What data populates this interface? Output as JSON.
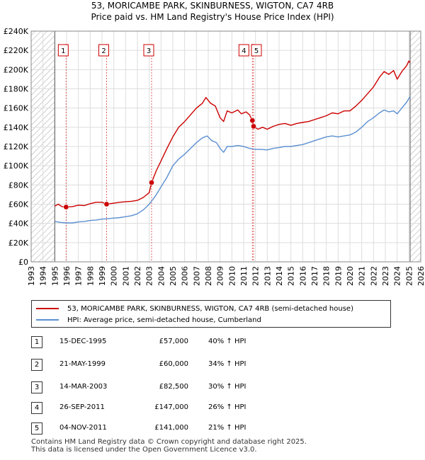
{
  "title_line1": "53, MORICAMBE PARK, SKINBURNESS, WIGTON, CA7 4RB",
  "title_line2": "Price paid vs. HM Land Registry's House Price Index (HPI)",
  "legend": {
    "property_label": "53, MORICAMBE PARK, SKINBURNESS, WIGTON, CA7 4RB (semi-detached house)",
    "hpi_label": "HPI: Average price, semi-detached house, Cumberland"
  },
  "colors": {
    "property": "#cc0000",
    "hpi": "#5b8fd0",
    "hatch": "#b0b0b0",
    "grid": "#dddddd"
  },
  "transactions": [
    {
      "num": "1",
      "date": "15-DEC-1995",
      "price": "£57,000",
      "hpi": "40% ↑ HPI",
      "year": 1995.96,
      "value": 57000
    },
    {
      "num": "2",
      "date": "21-MAY-1999",
      "price": "£60,000",
      "hpi": "34% ↑ HPI",
      "year": 1999.39,
      "value": 60000
    },
    {
      "num": "3",
      "date": "14-MAR-2003",
      "price": "£82,500",
      "hpi": "30% ↑ HPI",
      "year": 2003.2,
      "value": 82500
    },
    {
      "num": "4",
      "date": "26-SEP-2011",
      "price": "£147,000",
      "hpi": "26% ↑ HPI",
      "year": 2011.74,
      "value": 147000
    },
    {
      "num": "5",
      "date": "04-NOV-2011",
      "price": "£141,000",
      "hpi": "21% ↑ HPI",
      "year": 2011.84,
      "value": 141000
    }
  ],
  "footer_line1": "Contains HM Land Registry data © Crown copyright and database right 2025.",
  "footer_line2": "This data is licensed under the Open Government Licence v3.0.",
  "chart_data": {
    "type": "line",
    "xlim": [
      1993,
      2026
    ],
    "ylim": [
      0,
      240000
    ],
    "x_ticks": [
      "1993",
      "1994",
      "1995",
      "1996",
      "1997",
      "1998",
      "1999",
      "2000",
      "2001",
      "2002",
      "2003",
      "2004",
      "2005",
      "2006",
      "2007",
      "2008",
      "2009",
      "2010",
      "2011",
      "2012",
      "2013",
      "2014",
      "2015",
      "2016",
      "2017",
      "2018",
      "2019",
      "2020",
      "2021",
      "2022",
      "2023",
      "2024",
      "2025",
      "2026"
    ],
    "y_ticks": [
      {
        "value": 0,
        "label": "£0"
      },
      {
        "value": 20000,
        "label": "£20K"
      },
      {
        "value": 40000,
        "label": "£40K"
      },
      {
        "value": 60000,
        "label": "£60K"
      },
      {
        "value": 80000,
        "label": "£80K"
      },
      {
        "value": 100000,
        "label": "£100K"
      },
      {
        "value": 120000,
        "label": "£120K"
      },
      {
        "value": 140000,
        "label": "£140K"
      },
      {
        "value": 160000,
        "label": "£160K"
      },
      {
        "value": 180000,
        "label": "£180K"
      },
      {
        "value": 200000,
        "label": "£200K"
      },
      {
        "value": 220000,
        "label": "£220K"
      },
      {
        "value": 240000,
        "label": "£240K"
      }
    ],
    "grid": true,
    "hatched_before": 1995.0,
    "hatched_after": 2025.1,
    "series": [
      {
        "name": "53, MORICAMBE PARK, SKINBURNESS, WIGTON, CA7 4RB (semi-detached house)",
        "points": [
          [
            1995.0,
            58000
          ],
          [
            1995.3,
            60000
          ],
          [
            1995.6,
            57500
          ],
          [
            1995.96,
            57000
          ],
          [
            1996.5,
            57500
          ],
          [
            1997.0,
            59000
          ],
          [
            1997.5,
            58500
          ],
          [
            1998.0,
            60500
          ],
          [
            1998.5,
            62000
          ],
          [
            1999.0,
            62000
          ],
          [
            1999.39,
            60000
          ],
          [
            2000.0,
            61000
          ],
          [
            2000.5,
            62000
          ],
          [
            2001.0,
            62500
          ],
          [
            2001.5,
            63000
          ],
          [
            2002.0,
            64000
          ],
          [
            2002.5,
            67000
          ],
          [
            2003.0,
            72000
          ],
          [
            2003.2,
            82500
          ],
          [
            2003.6,
            95000
          ],
          [
            2004.0,
            105000
          ],
          [
            2004.5,
            118000
          ],
          [
            2005.0,
            130000
          ],
          [
            2005.5,
            140000
          ],
          [
            2006.0,
            146000
          ],
          [
            2006.5,
            153000
          ],
          [
            2007.0,
            160000
          ],
          [
            2007.5,
            165000
          ],
          [
            2007.8,
            171000
          ],
          [
            2008.2,
            165000
          ],
          [
            2008.6,
            162000
          ],
          [
            2009.0,
            150000
          ],
          [
            2009.3,
            146000
          ],
          [
            2009.6,
            157000
          ],
          [
            2010.0,
            155000
          ],
          [
            2010.5,
            158000
          ],
          [
            2010.8,
            154000
          ],
          [
            2011.2,
            156000
          ],
          [
            2011.5,
            153000
          ],
          [
            2011.74,
            147000
          ],
          [
            2011.84,
            141000
          ],
          [
            2012.2,
            138000
          ],
          [
            2012.6,
            140000
          ],
          [
            2013.0,
            138000
          ],
          [
            2013.5,
            141000
          ],
          [
            2014.0,
            143000
          ],
          [
            2014.5,
            144000
          ],
          [
            2015.0,
            142000
          ],
          [
            2015.5,
            144000
          ],
          [
            2016.0,
            145000
          ],
          [
            2016.5,
            146000
          ],
          [
            2017.0,
            148000
          ],
          [
            2017.5,
            150000
          ],
          [
            2018.0,
            152000
          ],
          [
            2018.5,
            155000
          ],
          [
            2019.0,
            154000
          ],
          [
            2019.5,
            157000
          ],
          [
            2020.0,
            157000
          ],
          [
            2020.5,
            162000
          ],
          [
            2021.0,
            168000
          ],
          [
            2021.5,
            175000
          ],
          [
            2022.0,
            182000
          ],
          [
            2022.5,
            192000
          ],
          [
            2022.9,
            198000
          ],
          [
            2023.3,
            195000
          ],
          [
            2023.7,
            199000
          ],
          [
            2024.0,
            190000
          ],
          [
            2024.4,
            198000
          ],
          [
            2024.8,
            204000
          ],
          [
            2025.0,
            209000
          ],
          [
            2025.1,
            207000
          ]
        ]
      },
      {
        "name": "HPI: Average price, semi-detached house, Cumberland",
        "points": [
          [
            1995.0,
            42000
          ],
          [
            1995.5,
            41000
          ],
          [
            1996.0,
            40500
          ],
          [
            1996.5,
            40500
          ],
          [
            1997.0,
            41500
          ],
          [
            1997.5,
            42000
          ],
          [
            1998.0,
            43000
          ],
          [
            1998.5,
            43500
          ],
          [
            1999.0,
            44500
          ],
          [
            1999.5,
            45000
          ],
          [
            2000.0,
            45500
          ],
          [
            2000.5,
            46000
          ],
          [
            2001.0,
            47000
          ],
          [
            2001.5,
            48000
          ],
          [
            2002.0,
            50000
          ],
          [
            2002.5,
            54000
          ],
          [
            2003.0,
            60000
          ],
          [
            2003.5,
            68000
          ],
          [
            2004.0,
            78000
          ],
          [
            2004.5,
            88000
          ],
          [
            2005.0,
            100000
          ],
          [
            2005.5,
            107000
          ],
          [
            2006.0,
            112000
          ],
          [
            2006.5,
            118000
          ],
          [
            2007.0,
            124000
          ],
          [
            2007.5,
            129000
          ],
          [
            2007.9,
            131000
          ],
          [
            2008.3,
            126000
          ],
          [
            2008.7,
            124000
          ],
          [
            2009.0,
            118000
          ],
          [
            2009.3,
            114000
          ],
          [
            2009.6,
            120000
          ],
          [
            2010.0,
            120000
          ],
          [
            2010.5,
            121000
          ],
          [
            2011.0,
            120000
          ],
          [
            2011.5,
            118000
          ],
          [
            2012.0,
            117000
          ],
          [
            2012.5,
            117000
          ],
          [
            2013.0,
            116500
          ],
          [
            2013.5,
            118000
          ],
          [
            2014.0,
            119000
          ],
          [
            2014.5,
            120000
          ],
          [
            2015.0,
            120000
          ],
          [
            2015.5,
            121000
          ],
          [
            2016.0,
            122000
          ],
          [
            2016.5,
            124000
          ],
          [
            2017.0,
            126000
          ],
          [
            2017.5,
            128000
          ],
          [
            2018.0,
            130000
          ],
          [
            2018.5,
            131000
          ],
          [
            2019.0,
            130000
          ],
          [
            2019.5,
            131000
          ],
          [
            2020.0,
            132000
          ],
          [
            2020.5,
            135000
          ],
          [
            2021.0,
            140000
          ],
          [
            2021.5,
            146000
          ],
          [
            2022.0,
            150000
          ],
          [
            2022.5,
            155000
          ],
          [
            2022.9,
            158000
          ],
          [
            2023.3,
            156000
          ],
          [
            2023.7,
            157000
          ],
          [
            2024.0,
            154000
          ],
          [
            2024.4,
            160000
          ],
          [
            2024.8,
            166000
          ],
          [
            2025.1,
            172000
          ]
        ]
      }
    ]
  }
}
